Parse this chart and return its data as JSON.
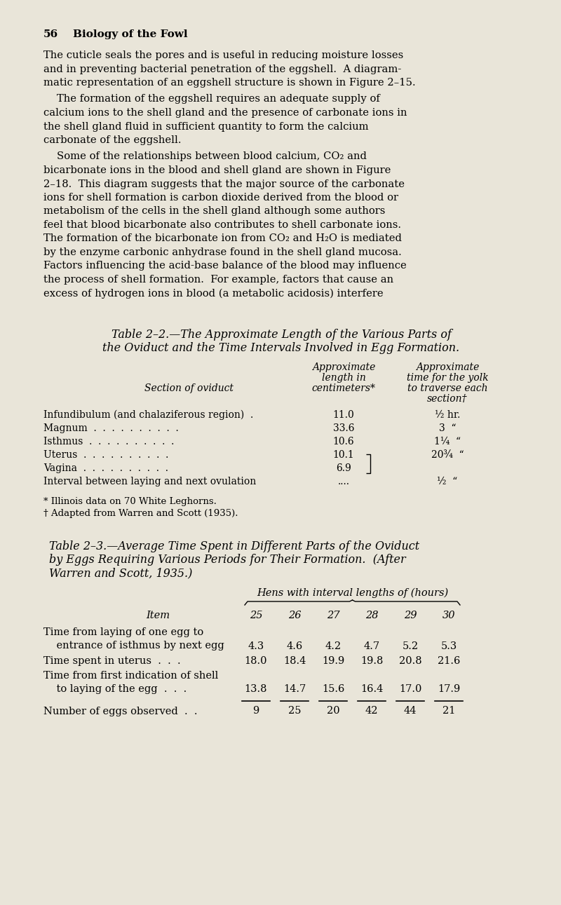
{
  "bg_color": "#e9e5d9",
  "page_number": "56",
  "page_heading": "Biology of the Fowl",
  "table1_title_line1": "Table 2–2.—The Approximate Length of the Various Parts of",
  "table1_title_line2": "the Oviduct and the Time Intervals Involved in Egg Formation.",
  "table1_col1_hdr": [
    "Approximate",
    "length in",
    "centimeters*"
  ],
  "table1_col2_hdr": [
    "Approximate",
    "time for the yolk",
    "to traverse each",
    "section†"
  ],
  "table1_row_hdr": "Section of oviduct",
  "table1_rows": [
    [
      "Infundibulum (and chalaziferous region)  .",
      "11.0",
      "½ hr."
    ],
    [
      "Magnum  .  .  .  .  .  .  .  .  .  .",
      "33.6",
      "3  “"
    ],
    [
      "Isthmus  .  .  .  .  .  .  .  .  .  .",
      "10.6",
      "1¼  “"
    ],
    [
      "Uterus  .  .  .  .  .  .  .  .  .  .",
      "10.1",
      "20¾  “"
    ],
    [
      "Vagina  .  .  .  .  .  .  .  .  .  .",
      "6.9",
      ""
    ],
    [
      "Interval between laying and next ovulation",
      "....",
      "½  “"
    ]
  ],
  "table1_footnote1": "* Illinois data on 70 White Leghorns.",
  "table1_footnote2": "† Adapted from Warren and Scott (1935).",
  "table2_title_line1": "Table 2–3.—Average Time Spent in Different Parts of the Oviduct",
  "table2_title_line2": "by Eggs Requiring Various Periods for Their Formation.  (After",
  "table2_title_line3": "Warren and Scott, 1935.)",
  "table2_header_group": "Hens with interval lengths of (hours)",
  "table2_col_headers": [
    "Item",
    "25",
    "26",
    "27",
    "28",
    "29",
    "30"
  ],
  "table2_row0_line1": "Time from laying of one egg to",
  "table2_row0_line2": "    entrance of isthmus by next egg",
  "table2_row0_vals": [
    "4.3",
    "4.6",
    "4.2",
    "4.7",
    "5.2",
    "5.3"
  ],
  "table2_row1_line1": "Time spent in uterus  .  .  .",
  "table2_row1_vals": [
    "18.0",
    "18.4",
    "19.9",
    "19.8",
    "20.8",
    "21.6"
  ],
  "table2_row2_line1": "Time from first indication of shell",
  "table2_row2_line2": "    to laying of the egg  .  .  .",
  "table2_row2_vals": [
    "13.8",
    "14.7",
    "15.6",
    "16.4",
    "17.0",
    "17.9"
  ],
  "table2_row3_line1": "Number of eggs observed  .  .",
  "table2_row3_vals": [
    "9",
    "25",
    "20",
    "42",
    "44",
    "21"
  ]
}
